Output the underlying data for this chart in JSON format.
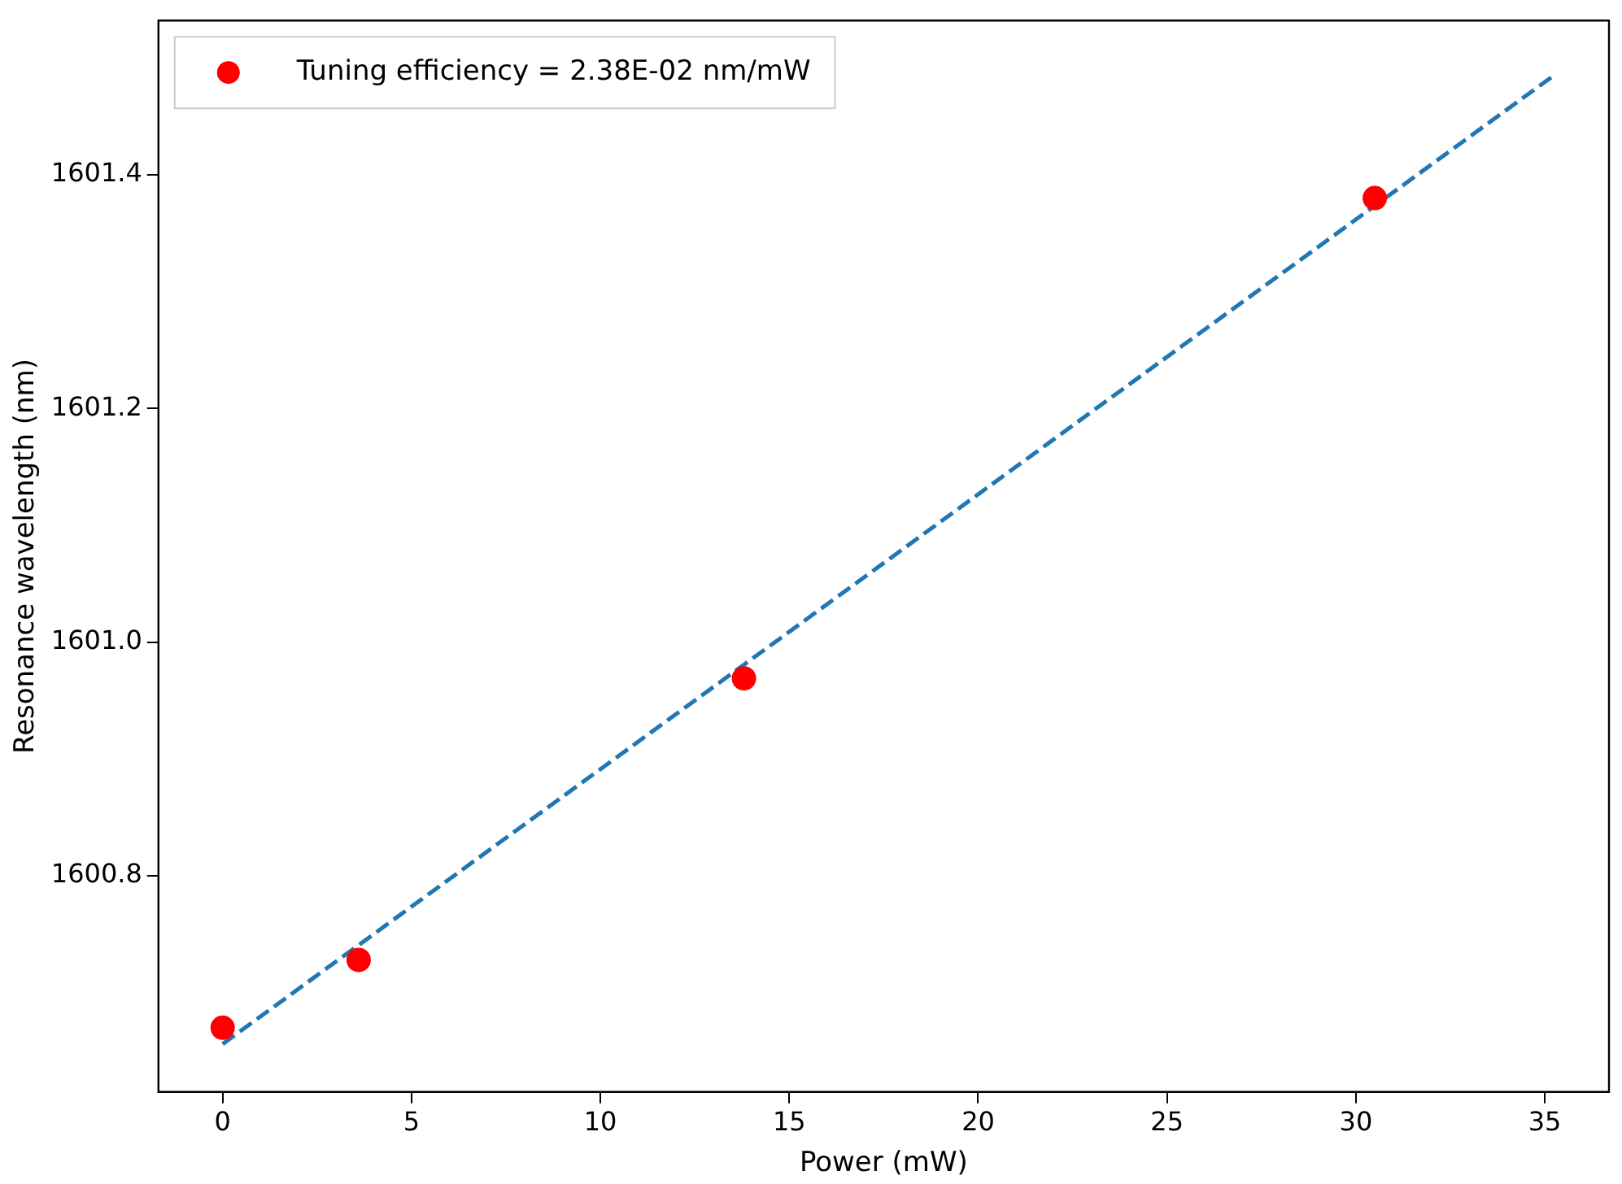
{
  "chart_data": {
    "type": "scatter",
    "xlabel": "Power (mW)",
    "ylabel": "Resonance wavelength (nm)",
    "xlim": [
      -1.7,
      36.7
    ],
    "xticks": [
      0,
      5,
      10,
      15,
      20,
      25,
      30,
      35
    ],
    "ylim": [
      1600.615,
      1601.532
    ],
    "yticks": [
      {
        "value": 1600.8,
        "label": "1600.8"
      },
      {
        "value": 1601.0,
        "label": "1601.0"
      },
      {
        "value": 1601.2,
        "label": "1601.2"
      },
      {
        "value": 1601.4,
        "label": "1601.4"
      }
    ],
    "grid": false,
    "legend": "top left",
    "series": [
      {
        "name": "Tuning efficiency = 2.38E-02 nm/mW",
        "marker": "circle",
        "color": "#ff0000",
        "x": [
          0,
          3.6,
          13.8,
          30.5
        ],
        "values": [
          1600.67,
          1600.728,
          1600.969,
          1601.38
        ]
      },
      {
        "type": "line",
        "marker": "none",
        "line_style": "dashed",
        "color": "#1f77b4",
        "x": [
          0,
          35.2
        ],
        "values": [
          1600.656,
          1601.484
        ]
      }
    ]
  }
}
